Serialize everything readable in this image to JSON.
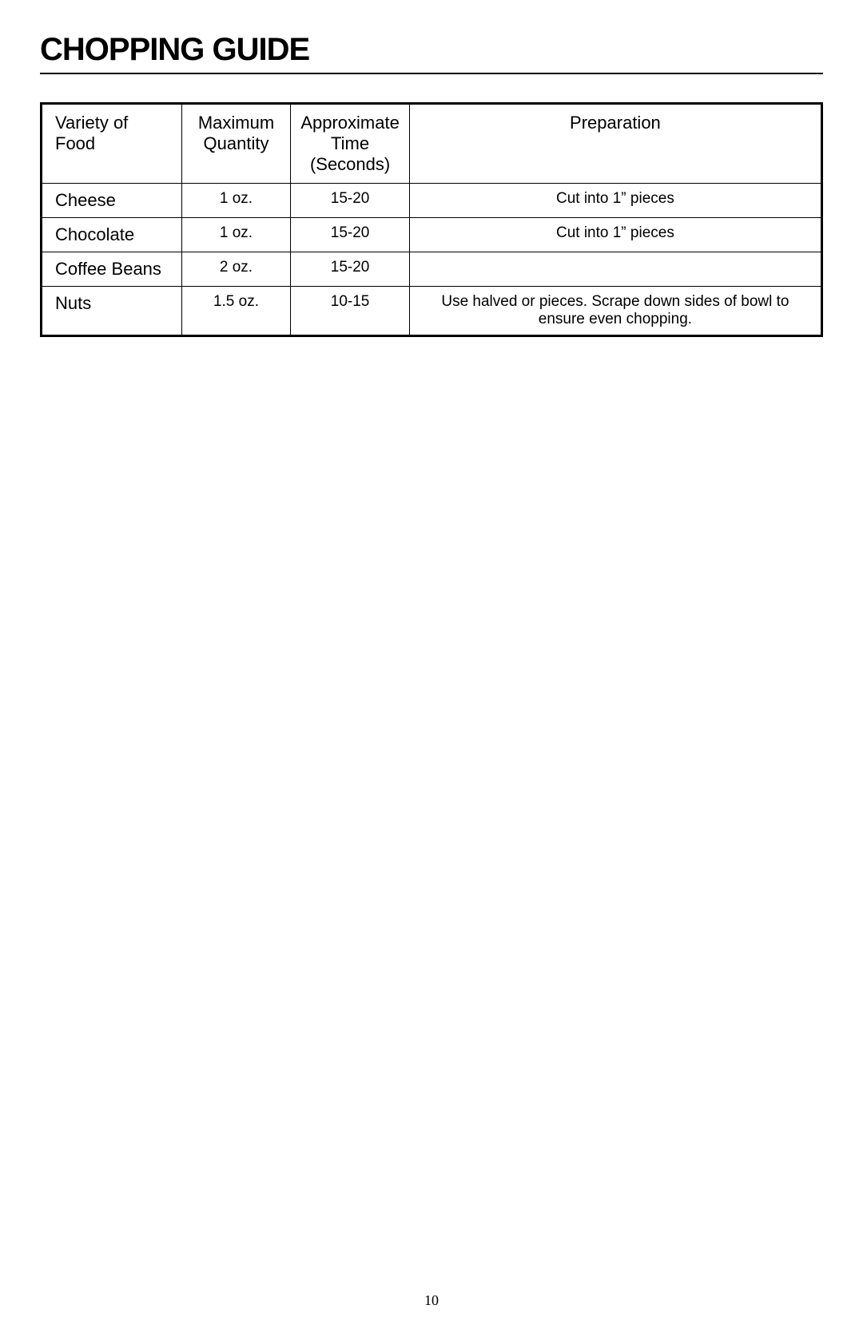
{
  "page": {
    "title": "CHOPPING GUIDE",
    "number": "10"
  },
  "table": {
    "type": "table",
    "border_color": "#000000",
    "outer_border_width": 3,
    "inner_border_width": 1,
    "background_color": "#ffffff",
    "header_fontsize": 22,
    "body_fontsize": 19,
    "food_col_fontsize": 22,
    "columns": [
      {
        "key": "food",
        "label": "Variety of Food",
        "width_pct": 18,
        "align": "left"
      },
      {
        "key": "quantity",
        "label": "Maximum Quantity",
        "width_pct": 14,
        "align": "center"
      },
      {
        "key": "time",
        "label": "Approximate Time (Seconds)",
        "width_pct": 15,
        "align": "center"
      },
      {
        "key": "preparation",
        "label": "Preparation",
        "width_pct": 53,
        "align": "center"
      }
    ],
    "rows": [
      {
        "food": "Cheese",
        "quantity": "1 oz.",
        "time": "15-20",
        "preparation": "Cut into 1” pieces"
      },
      {
        "food": "Chocolate",
        "quantity": "1 oz.",
        "time": "15-20",
        "preparation": "Cut into 1” pieces"
      },
      {
        "food": "Coffee Beans",
        "quantity": "2 oz.",
        "time": "15-20",
        "preparation": ""
      },
      {
        "food": "Nuts",
        "quantity": "1.5 oz.",
        "time": "10-15",
        "preparation": "Use halved or pieces.  Scrape down sides of bowl to ensure even chopping."
      }
    ]
  }
}
